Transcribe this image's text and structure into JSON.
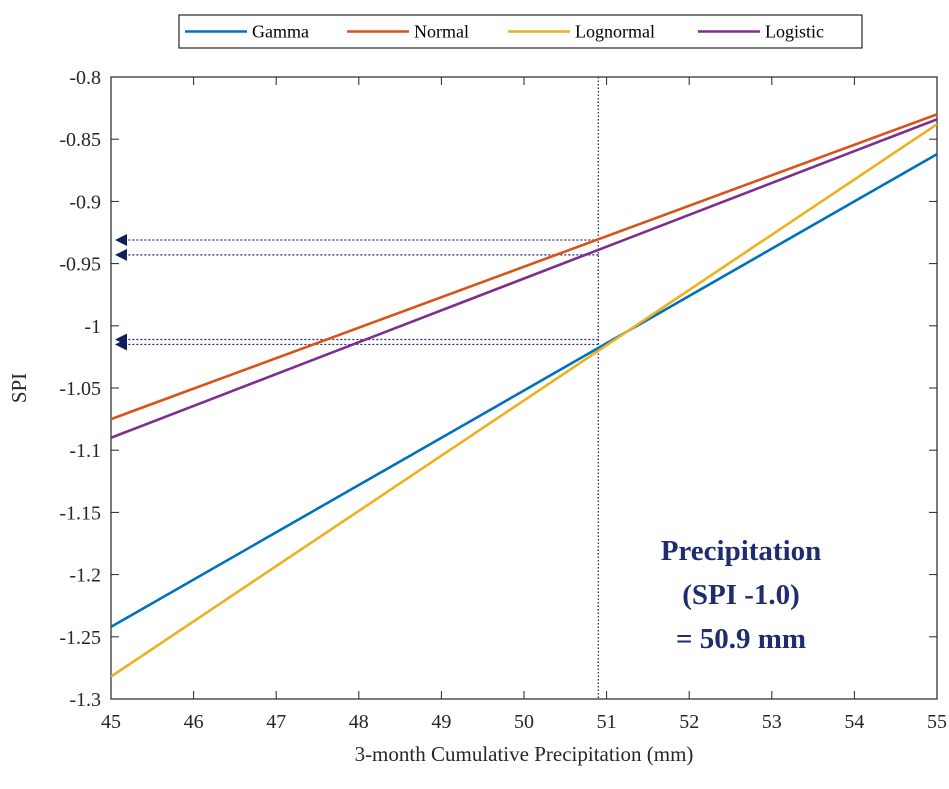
{
  "chart_data": {
    "type": "line",
    "xlabel": "3-month Cumulative Precipitation (mm)",
    "ylabel": "SPI",
    "xlim": [
      45,
      55
    ],
    "ylim": [
      -1.3,
      -0.8
    ],
    "x_ticks": [
      "45",
      "46",
      "47",
      "48",
      "49",
      "50",
      "51",
      "52",
      "53",
      "54",
      "55"
    ],
    "y_ticks": [
      "-0.8",
      "-0.85",
      "-0.9",
      "-0.95",
      "-1",
      "-1.05",
      "-1.1",
      "-1.15",
      "-1.2",
      "-1.25",
      "-1.3"
    ],
    "grid": false,
    "legend_position": "top",
    "series": [
      {
        "name": "Gamma",
        "color": "#0072BD",
        "x": [
          45,
          55
        ],
        "y": [
          -1.242,
          -0.862
        ]
      },
      {
        "name": "Normal",
        "color": "#D95319",
        "x": [
          45,
          55
        ],
        "y": [
          -1.075,
          -0.83
        ]
      },
      {
        "name": "Lognormal",
        "color": "#EDB120",
        "x": [
          45,
          55
        ],
        "y": [
          -1.282,
          -0.838
        ]
      },
      {
        "name": "Logistic",
        "color": "#7E2F8E",
        "x": [
          45,
          55
        ],
        "y": [
          -1.09,
          -0.834
        ]
      }
    ],
    "reference_line": {
      "x": 50.9,
      "color": "#1f2d6e"
    },
    "arrows": [
      {
        "y": -0.931,
        "from_x": 50.9
      },
      {
        "y": -0.943,
        "from_x": 50.9
      },
      {
        "y": -1.011,
        "from_x": 50.9
      },
      {
        "y": -1.015,
        "from_x": 50.9
      }
    ],
    "annotation": {
      "lines": [
        "Precipitation",
        "(SPI -1.0)",
        "= 50.9 mm"
      ],
      "color": "#1f2d6e"
    }
  }
}
